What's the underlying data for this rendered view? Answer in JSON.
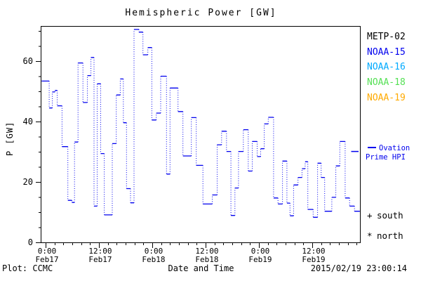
{
  "title": "Hemispheric Power [GW]",
  "colors": {
    "background": "#ffffff",
    "axis": "#000000",
    "hpi_line": "#0000ee",
    "metp02": "#000000",
    "noaa15": "#0000ee",
    "noaa16": "#00aaff",
    "noaa18": "#55e055",
    "noaa19": "#ffaa00"
  },
  "legend": {
    "satellites": [
      {
        "label": "METP-02",
        "color": "#000000"
      },
      {
        "label": "NOAA-15",
        "color": "#0000ee"
      },
      {
        "label": "NOAA-16",
        "color": "#00aaff"
      },
      {
        "label": "NOAA-18",
        "color": "#55e055"
      },
      {
        "label": "NOAA-19",
        "color": "#ffaa00"
      }
    ],
    "hpi_line": {
      "line1_label": "Ovation",
      "line2_label": "Prime HPI",
      "color": "#0000ee"
    },
    "hemisphere_markers": [
      {
        "glyph": "+",
        "label": "south"
      },
      {
        "glyph": "*",
        "label": "north"
      }
    ]
  },
  "footer": {
    "plot_credit": "Plot: CCMC",
    "timestamp": "2015/02/19 23:00:14"
  },
  "chart_data": {
    "type": "line",
    "subtype": "step-histogram, solid level dashes with dotted vertical connectors",
    "title": "Hemispheric Power [GW]",
    "xlabel": "Date and Time",
    "ylabel": "P [GW]",
    "ylim": [
      0,
      71.4
    ],
    "xlim_hours_from_feb17_0000": [
      -0.95,
      70.75
    ],
    "grid": false,
    "legend_position": "right outside",
    "y_ticks": [
      {
        "value": 0,
        "label": "0"
      },
      {
        "value": 20,
        "label": "20"
      },
      {
        "value": 40,
        "label": "40"
      },
      {
        "value": 60,
        "label": "60"
      }
    ],
    "y_minor_step": 5,
    "x_minor_step_hours": 2,
    "x_ticks": [
      {
        "hour": 0,
        "time": "0:00",
        "date": "Feb17"
      },
      {
        "hour": 12,
        "time": "12:00",
        "date": "Feb17"
      },
      {
        "hour": 24,
        "time": "0:00",
        "date": "Feb18"
      },
      {
        "hour": 36,
        "time": "12:00",
        "date": "Feb18"
      },
      {
        "hour": 48,
        "time": "0:00",
        "date": "Feb19"
      },
      {
        "hour": 60,
        "time": "12:00",
        "date": "Feb19"
      }
    ],
    "axis_marker_gw": 30.1,
    "series": [
      {
        "name": "Ovation Prime HPI",
        "color": "#0000ee",
        "units": "GW",
        "end_hour": 70.7,
        "steps": [
          [
            -0.9,
            53.4
          ],
          [
            0.8,
            44.5
          ],
          [
            1.5,
            49.8
          ],
          [
            2.1,
            50.3
          ],
          [
            2.6,
            45.2
          ],
          [
            3.7,
            31.7
          ],
          [
            5.0,
            13.9
          ],
          [
            5.9,
            13.2
          ],
          [
            6.5,
            33.2
          ],
          [
            7.3,
            59.4
          ],
          [
            8.4,
            46.3
          ],
          [
            9.4,
            55.2
          ],
          [
            10.2,
            61.2
          ],
          [
            10.9,
            12.0
          ],
          [
            11.6,
            52.5
          ],
          [
            12.4,
            29.4
          ],
          [
            13.2,
            9.1
          ],
          [
            15.0,
            32.7
          ],
          [
            15.9,
            48.8
          ],
          [
            16.8,
            54.1
          ],
          [
            17.5,
            39.6
          ],
          [
            18.2,
            17.8
          ],
          [
            19.1,
            13.1
          ],
          [
            19.9,
            70.5
          ],
          [
            21.0,
            69.6
          ],
          [
            21.9,
            62.1
          ],
          [
            23.0,
            64.5
          ],
          [
            23.9,
            40.5
          ],
          [
            24.9,
            42.8
          ],
          [
            25.9,
            55.0
          ],
          [
            27.2,
            22.6
          ],
          [
            28.0,
            51.1
          ],
          [
            29.8,
            43.3
          ],
          [
            30.9,
            28.6
          ],
          [
            32.8,
            41.3
          ],
          [
            33.9,
            25.5
          ],
          [
            35.4,
            12.7
          ],
          [
            37.5,
            15.7
          ],
          [
            38.6,
            32.3
          ],
          [
            39.6,
            36.8
          ],
          [
            40.7,
            30.1
          ],
          [
            41.7,
            8.9
          ],
          [
            42.6,
            18.0
          ],
          [
            43.4,
            30.1
          ],
          [
            44.5,
            37.3
          ],
          [
            45.6,
            23.6
          ],
          [
            46.5,
            33.4
          ],
          [
            47.6,
            28.4
          ],
          [
            48.4,
            31.0
          ],
          [
            49.2,
            39.2
          ],
          [
            50.1,
            41.4
          ],
          [
            51.3,
            14.7
          ],
          [
            52.3,
            12.7
          ],
          [
            53.3,
            26.9
          ],
          [
            54.3,
            13.0
          ],
          [
            55.0,
            8.8
          ],
          [
            55.8,
            19.0
          ],
          [
            56.8,
            21.5
          ],
          [
            57.7,
            24.4
          ],
          [
            58.4,
            26.7
          ],
          [
            59.0,
            10.9
          ],
          [
            60.2,
            8.3
          ],
          [
            61.2,
            26.2
          ],
          [
            62.0,
            21.5
          ],
          [
            62.8,
            10.3
          ],
          [
            64.4,
            14.9
          ],
          [
            65.3,
            25.3
          ],
          [
            66.2,
            33.4
          ],
          [
            67.4,
            14.7
          ],
          [
            68.4,
            12.0
          ],
          [
            69.5,
            10.3
          ]
        ]
      }
    ]
  }
}
